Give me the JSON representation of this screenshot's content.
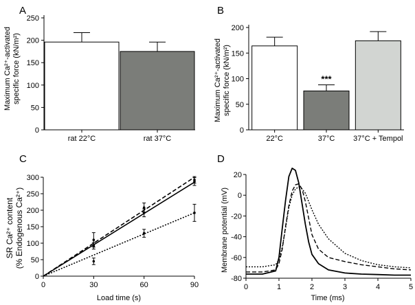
{
  "colors": {
    "white_bar": "#ffffff",
    "dark_bar": "#7b7d79",
    "light_bar": "#d2d5d2",
    "axis": "#000000"
  },
  "chart_data": [
    {
      "panel_label": "A",
      "type": "bar",
      "ylabel_line1": "Maximum Ca²⁺-activated",
      "ylabel_line2": "specific force (kN/m²)",
      "ylim": [
        0,
        250
      ],
      "yticks": [
        0,
        50,
        100,
        150,
        200,
        250
      ],
      "categories": [
        "rat 22°C",
        "rat 37°C"
      ],
      "values": [
        196,
        175
      ],
      "errors": [
        21,
        21
      ],
      "bar_colors": [
        "#ffffff",
        "#7b7d79"
      ],
      "annotations": [
        "",
        ""
      ]
    },
    {
      "panel_label": "B",
      "type": "bar",
      "ylabel_line1": "Maximum Ca²⁺-activated",
      "ylabel_line2": "specific force (kN/m²)",
      "ylim": [
        0,
        200
      ],
      "yticks": [
        0,
        50,
        100,
        150,
        200
      ],
      "categories": [
        "22°C",
        "37°C",
        "37°C + Tempol"
      ],
      "values": [
        164,
        76,
        174
      ],
      "errors": [
        17,
        12,
        18
      ],
      "bar_colors": [
        "#ffffff",
        "#7b7d79",
        "#d2d5d2"
      ],
      "annotations": [
        "",
        "***",
        ""
      ]
    },
    {
      "panel_label": "C",
      "type": "line",
      "ylabel_line1": "SR Ca²⁺ content",
      "ylabel_line2": "(% Endogenous Ca²⁺)",
      "xlabel": "Load time (s)",
      "xlim": [
        0,
        90
      ],
      "ylim": [
        0,
        300
      ],
      "xticks": [
        0,
        30,
        60,
        90
      ],
      "yticks": [
        0,
        50,
        100,
        150,
        200,
        250,
        300
      ],
      "series": [
        {
          "name": "solid",
          "dash": "solid",
          "fit": [
            [
              0,
              0
            ],
            [
              90,
              285
            ]
          ],
          "points": [
            [
              30,
              92,
              10
            ],
            [
              60,
              192,
              12
            ],
            [
              90,
              287,
              12
            ]
          ]
        },
        {
          "name": "dashed",
          "dash": "dashed",
          "fit": [
            [
              0,
              0
            ],
            [
              90,
              300
            ]
          ],
          "points": [
            [
              30,
              110,
              22
            ],
            [
              60,
              208,
              14
            ],
            [
              90,
              292,
              10
            ]
          ]
        },
        {
          "name": "dotted",
          "dash": "dotted",
          "fit": [
            [
              0,
              0
            ],
            [
              90,
              192
            ]
          ],
          "points": [
            [
              30,
              45,
              10
            ],
            [
              60,
              130,
              12
            ],
            [
              90,
              192,
              26
            ]
          ]
        }
      ]
    },
    {
      "panel_label": "D",
      "type": "line",
      "ylabel": "Membrane potential (mV)",
      "xlabel": "Time (ms)",
      "xlim": [
        0,
        5
      ],
      "ylim": [
        -80,
        20
      ],
      "xticks": [
        0,
        1,
        2,
        3,
        4,
        5
      ],
      "yticks": [
        -80,
        -60,
        -40,
        -20,
        0,
        20
      ],
      "series": [
        {
          "name": "solid",
          "dash": "solid",
          "points": [
            [
              0,
              -76
            ],
            [
              0.5,
              -76
            ],
            [
              0.9,
              -73
            ],
            [
              1.0,
              -60
            ],
            [
              1.1,
              -32
            ],
            [
              1.2,
              -5
            ],
            [
              1.3,
              18
            ],
            [
              1.4,
              26
            ],
            [
              1.5,
              24
            ],
            [
              1.6,
              12
            ],
            [
              1.7,
              -8
            ],
            [
              1.8,
              -28
            ],
            [
              1.9,
              -45
            ],
            [
              2.0,
              -57
            ],
            [
              2.2,
              -66
            ],
            [
              2.5,
              -72
            ],
            [
              3.0,
              -75
            ],
            [
              3.5,
              -76
            ],
            [
              4.0,
              -76.5
            ],
            [
              4.5,
              -77
            ],
            [
              5.0,
              -77
            ]
          ]
        },
        {
          "name": "dashed",
          "dash": "dashed",
          "points": [
            [
              0,
              -74
            ],
            [
              0.5,
              -74
            ],
            [
              0.9,
              -72
            ],
            [
              1.0,
              -66
            ],
            [
              1.1,
              -52
            ],
            [
              1.2,
              -30
            ],
            [
              1.3,
              -10
            ],
            [
              1.4,
              4
            ],
            [
              1.5,
              10
            ],
            [
              1.6,
              11
            ],
            [
              1.7,
              6
            ],
            [
              1.8,
              -6
            ],
            [
              1.9,
              -22
            ],
            [
              2.0,
              -38
            ],
            [
              2.2,
              -52
            ],
            [
              2.5,
              -60
            ],
            [
              3.0,
              -64
            ],
            [
              3.5,
              -67
            ],
            [
              4.0,
              -69
            ],
            [
              4.5,
              -71
            ],
            [
              5.0,
              -72
            ]
          ]
        },
        {
          "name": "dotted",
          "dash": "dotted",
          "points": [
            [
              0,
              -69
            ],
            [
              0.5,
              -69
            ],
            [
              0.9,
              -67
            ],
            [
              1.0,
              -62
            ],
            [
              1.1,
              -50
            ],
            [
              1.2,
              -32
            ],
            [
              1.3,
              -12
            ],
            [
              1.4,
              0
            ],
            [
              1.5,
              6
            ],
            [
              1.6,
              8
            ],
            [
              1.7,
              6
            ],
            [
              1.8,
              2
            ],
            [
              1.9,
              -6
            ],
            [
              2.0,
              -14
            ],
            [
              2.2,
              -28
            ],
            [
              2.5,
              -42
            ],
            [
              3.0,
              -56
            ],
            [
              3.5,
              -63
            ],
            [
              4.0,
              -67
            ],
            [
              4.5,
              -69
            ],
            [
              5.0,
              -70
            ]
          ]
        }
      ]
    }
  ]
}
